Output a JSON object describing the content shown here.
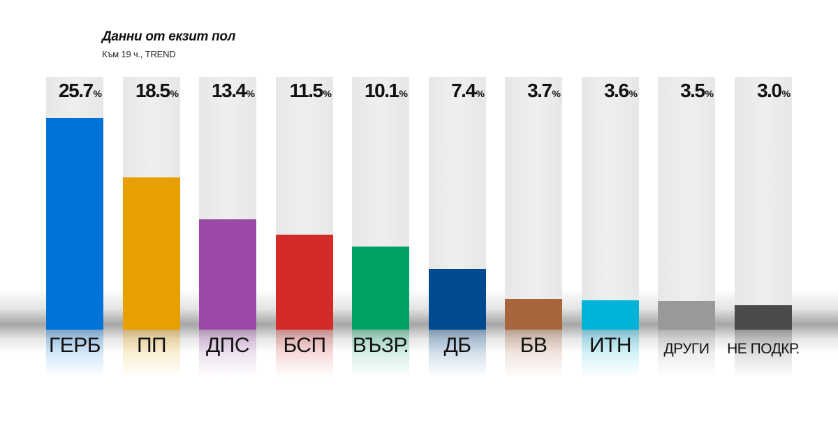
{
  "chart_data": {
    "type": "bar",
    "title": "Данни от екзит пол",
    "subtitle": "Към 19 ч., TREND",
    "unit": "%",
    "categories": [
      "ГЕРБ",
      "ПП",
      "ДПС",
      "БСП",
      "ВЪЗР.",
      "ДБ",
      "БВ",
      "ИТН",
      "ДРУГИ",
      "НЕ ПОДКР."
    ],
    "value_labels": [
      "25.7",
      "18.5",
      "13.4",
      "11.5",
      "10.1",
      "7.4",
      "3.7",
      "3.6",
      "3.5",
      "3.0"
    ],
    "values": [
      25.7,
      18.5,
      13.4,
      11.5,
      10.1,
      7.4,
      3.7,
      3.6,
      3.5,
      3.0
    ],
    "colors": [
      "#0073d9",
      "#e8a000",
      "#9b4aa8",
      "#d42a2a",
      "#00a364",
      "#004a8f",
      "#a8643a",
      "#00b4d9",
      "#999999",
      "#4a4a4a"
    ],
    "ylim": [
      0,
      30
    ],
    "grid": false,
    "legend": "none"
  }
}
